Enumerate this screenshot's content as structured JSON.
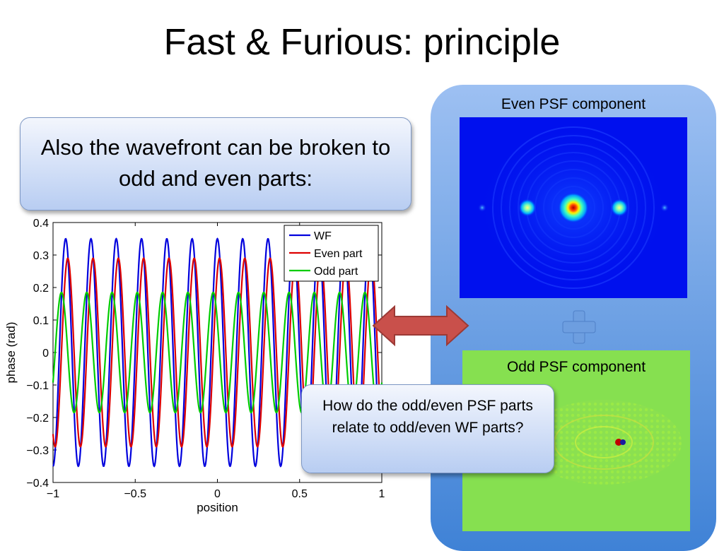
{
  "slide": {
    "title": "Fast & Furious: principle",
    "callout_main": "Also the wavefront can be broken to odd and even parts:",
    "callout_question": "How do the odd/even PSF parts relate to odd/even WF parts?",
    "even_psf_label": "Even PSF component",
    "odd_psf_label": "Odd PSF component",
    "colors": {
      "panel": "#5b95e0",
      "arrow": "#c9504b",
      "plus": "#6d9ee0"
    }
  },
  "chart_data": {
    "type": "line",
    "xlabel": "position",
    "ylabel": "phase (rad)",
    "xlim": [
      -1,
      1
    ],
    "ylim": [
      -0.4,
      0.4
    ],
    "xticks": [
      "−1",
      "−0.5",
      "0",
      "0.5",
      "1"
    ],
    "yticks": [
      "0.4",
      "0.3",
      "0.2",
      "0.1",
      "0",
      "−0.1",
      "−0.2",
      "−0.3",
      "−0.4"
    ],
    "legend_position": "top-right",
    "series": [
      {
        "name": "WF",
        "color": "#0000dd",
        "amplitude": 0.35,
        "cycles_per_unit": 6.5,
        "phase_deg": 0
      },
      {
        "name": "Even part",
        "color": "#dd0000",
        "amplitude": 0.29,
        "cycles_per_unit": 6.5,
        "phase_deg": -30
      },
      {
        "name": "Odd part",
        "color": "#00cc00",
        "amplitude": 0.185,
        "cycles_per_unit": 6.5,
        "phase_deg": 60
      }
    ]
  }
}
